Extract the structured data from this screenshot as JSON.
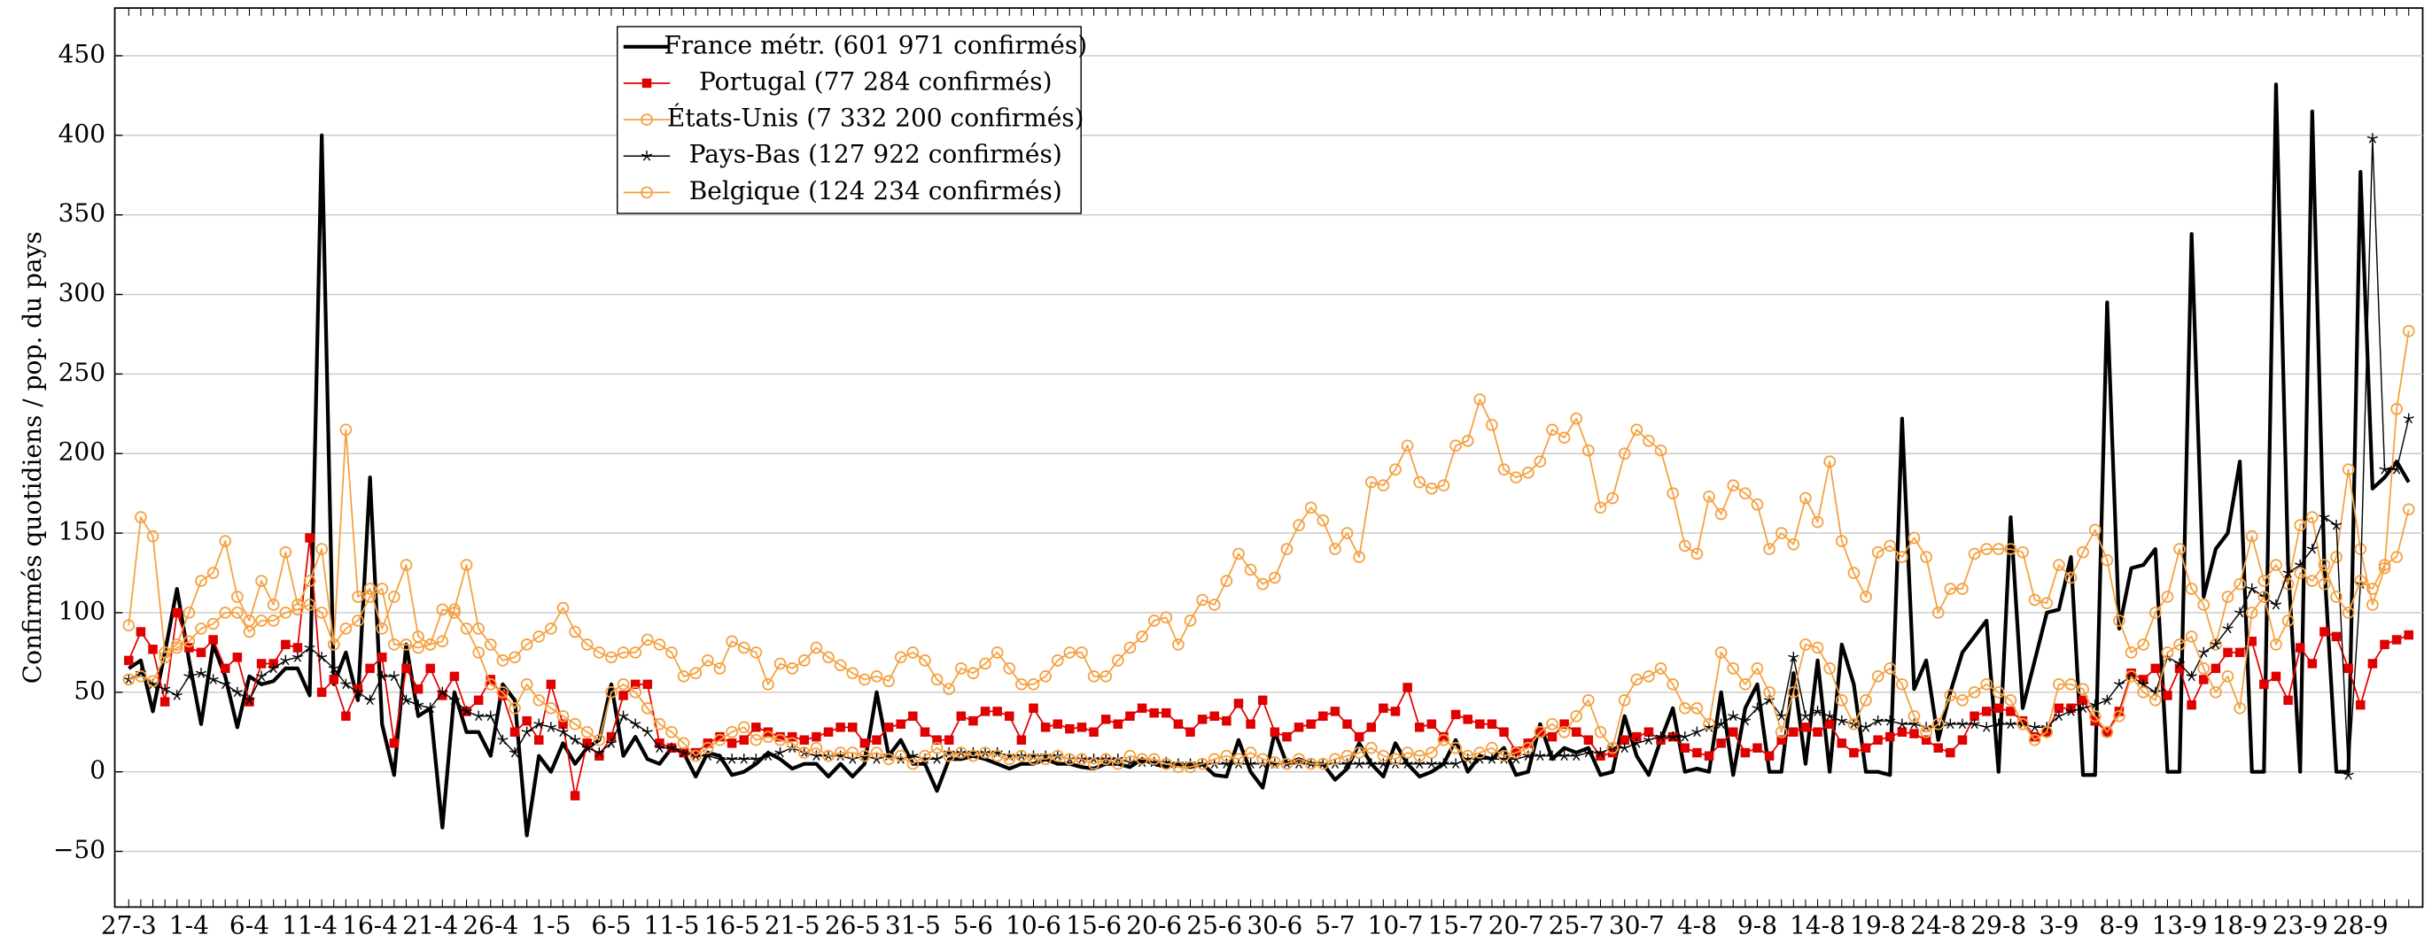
{
  "chart_data": {
    "type": "line",
    "y_label": "Confirmés quotidiens / pop. du pays",
    "categories": [
      "27-3",
      null,
      null,
      null,
      null,
      "1-4",
      null,
      null,
      null,
      null,
      "6-4",
      null,
      null,
      null,
      null,
      "11-4",
      null,
      null,
      null,
      null,
      "16-4",
      null,
      null,
      null,
      null,
      "21-4",
      null,
      null,
      null,
      null,
      "26-4",
      null,
      null,
      null,
      null,
      "1-5",
      null,
      null,
      null,
      null,
      "6-5",
      null,
      null,
      null,
      null,
      "11-5",
      null,
      null,
      null,
      null,
      "16-5",
      null,
      null,
      null,
      null,
      "21-5",
      null,
      null,
      null,
      null,
      "26-5",
      null,
      null,
      null,
      null,
      "31-5",
      null,
      null,
      null,
      null,
      "5-6",
      null,
      null,
      null,
      null,
      "10-6",
      null,
      null,
      null,
      null,
      "15-6",
      null,
      null,
      null,
      null,
      "20-6",
      null,
      null,
      null,
      null,
      "25-6",
      null,
      null,
      null,
      null,
      "30-6",
      null,
      null,
      null,
      null,
      "5-7",
      null,
      null,
      null,
      null,
      "10-7",
      null,
      null,
      null,
      null,
      "15-7",
      null,
      null,
      null,
      null,
      "20-7",
      null,
      null,
      null,
      null,
      "25-7",
      null,
      null,
      null,
      null,
      "30-7",
      null,
      null,
      null,
      null,
      "4-8",
      null,
      null,
      null,
      null,
      "9-8",
      null,
      null,
      null,
      null,
      "14-8",
      null,
      null,
      null,
      null,
      "19-8",
      null,
      null,
      null,
      null,
      "24-8",
      null,
      null,
      null,
      null,
      "29-8",
      null,
      null,
      null,
      null,
      "3-9",
      null,
      null,
      null,
      null,
      "8-9",
      null,
      null,
      null,
      null,
      "13-9",
      null,
      null,
      null,
      null,
      "18-9",
      null,
      null,
      null,
      null,
      "23-9",
      null,
      null,
      null,
      null,
      "28-9",
      null,
      null,
      null,
      null
    ],
    "ylim": [
      -85,
      480
    ],
    "yticks": [
      {
        "value": -50,
        "label": "−50"
      },
      0,
      50,
      100,
      150,
      200,
      250,
      300,
      350,
      400,
      450
    ],
    "grid": true,
    "legend": "upper-left",
    "series": [
      {
        "name": "France métr. (601 971 confirmés)",
        "color": "#000000",
        "width": 2.4,
        "marker": "none",
        "values": [
          65,
          70,
          38,
          75,
          115,
          70,
          30,
          80,
          60,
          28,
          60,
          55,
          57,
          65,
          65,
          48,
          400,
          55,
          75,
          45,
          185,
          30,
          -2,
          80,
          35,
          40,
          -35,
          50,
          25,
          25,
          10,
          55,
          45,
          -40,
          10,
          0,
          18,
          5,
          15,
          20,
          55,
          10,
          22,
          8,
          5,
          15,
          12,
          -3,
          12,
          10,
          -2,
          0,
          5,
          12,
          8,
          2,
          5,
          5,
          -3,
          5,
          -3,
          5,
          50,
          10,
          20,
          5,
          5,
          -12,
          8,
          8,
          10,
          8,
          5,
          2,
          5,
          5,
          8,
          5,
          5,
          3,
          2,
          5,
          5,
          3,
          8,
          5,
          3,
          5,
          3,
          5,
          -2,
          -3,
          20,
          0,
          -10,
          25,
          5,
          8,
          5,
          5,
          -5,
          2,
          18,
          5,
          -3,
          18,
          5,
          -3,
          0,
          5,
          20,
          0,
          10,
          8,
          15,
          -2,
          0,
          30,
          8,
          15,
          12,
          15,
          -2,
          0,
          35,
          10,
          -2,
          20,
          40,
          0,
          2,
          0,
          50,
          -2,
          40,
          55,
          0,
          0,
          62,
          5,
          70,
          0,
          80,
          55,
          0,
          0,
          -2,
          222,
          52,
          70,
          20,
          50,
          75,
          85,
          95,
          0,
          160,
          40,
          70,
          100,
          102,
          135,
          -2,
          -2,
          295,
          90,
          128,
          130,
          140,
          0,
          0,
          338,
          110,
          140,
          150,
          195,
          0,
          0,
          432,
          130,
          0,
          415,
          130,
          0,
          0,
          377,
          178,
          185,
          195,
          182
        ]
      },
      {
        "name": "Portugal (77 284 confirmés)",
        "color": "#e00000",
        "width": 1,
        "marker": "square",
        "values": [
          70,
          88,
          77,
          44,
          100,
          78,
          75,
          83,
          65,
          72,
          44,
          68,
          68,
          80,
          78,
          147,
          50,
          58,
          35,
          52,
          65,
          72,
          18,
          65,
          52,
          65,
          48,
          60,
          38,
          45,
          58,
          48,
          25,
          32,
          20,
          55,
          30,
          -15,
          18,
          10,
          22,
          48,
          55,
          55,
          18,
          15,
          12,
          12,
          18,
          22,
          18,
          20,
          28,
          25,
          22,
          22,
          20,
          22,
          25,
          28,
          28,
          18,
          20,
          28,
          30,
          35,
          25,
          20,
          20,
          35,
          32,
          38,
          38,
          35,
          20,
          40,
          28,
          30,
          27,
          28,
          25,
          33,
          30,
          35,
          40,
          37,
          37,
          30,
          25,
          33,
          35,
          32,
          43,
          30,
          45,
          25,
          22,
          28,
          30,
          35,
          38,
          30,
          22,
          28,
          40,
          38,
          53,
          28,
          30,
          22,
          36,
          33,
          30,
          30,
          25,
          13,
          18,
          25,
          22,
          30,
          25,
          20,
          10,
          12,
          20,
          22,
          25,
          20,
          22,
          15,
          12,
          10,
          18,
          25,
          12,
          15,
          10,
          20,
          25,
          28,
          25,
          30,
          18,
          12,
          15,
          20,
          22,
          25,
          24,
          20,
          15,
          12,
          20,
          35,
          38,
          40,
          38,
          32,
          22,
          25,
          40,
          40,
          45,
          32,
          25,
          38,
          62,
          58,
          65,
          48,
          65,
          42,
          58,
          65,
          75,
          75,
          82,
          55,
          60,
          45,
          78,
          68,
          88,
          85,
          65,
          42,
          68,
          80,
          83,
          86
        ]
      },
      {
        "name": "États-Unis (7 332 200 confirmés)",
        "color": "#f5a040",
        "width": 1,
        "marker": "circle",
        "values": [
          92,
          160,
          148,
          75,
          80,
          100,
          120,
          125,
          145,
          110,
          95,
          120,
          105,
          138,
          105,
          120,
          140,
          80,
          215,
          110,
          115,
          90,
          110,
          130,
          85,
          80,
          82,
          102,
          130,
          90,
          80,
          70,
          72,
          80,
          85,
          90,
          103,
          88,
          80,
          75,
          72,
          75,
          75,
          83,
          80,
          75,
          60,
          62,
          70,
          65,
          82,
          78,
          75,
          55,
          68,
          65,
          70,
          78,
          72,
          67,
          62,
          58,
          60,
          57,
          72,
          75,
          70,
          58,
          52,
          65,
          62,
          68,
          75,
          65,
          55,
          55,
          60,
          70,
          75,
          75,
          60,
          60,
          70,
          78,
          85,
          95,
          97,
          80,
          95,
          108,
          105,
          120,
          137,
          127,
          118,
          122,
          140,
          155,
          166,
          158,
          140,
          150,
          135,
          182,
          180,
          190,
          205,
          182,
          178,
          180,
          205,
          208,
          234,
          218,
          190,
          185,
          188,
          195,
          215,
          210,
          222,
          202,
          166,
          172,
          200,
          215,
          208,
          202,
          175,
          142,
          137,
          173,
          162,
          180,
          175,
          168,
          140,
          150,
          143,
          172,
          157,
          195,
          145,
          125,
          110,
          138,
          142,
          135,
          147,
          135,
          100,
          115,
          115,
          137,
          140,
          140,
          140,
          138,
          108,
          106,
          130,
          122,
          138,
          152,
          133,
          95,
          75,
          80,
          100,
          110,
          140,
          115,
          105,
          80,
          110,
          118,
          148,
          120,
          130,
          118,
          155,
          160,
          118,
          135,
          190,
          140,
          105,
          128,
          228,
          277
        ]
      },
      {
        "name": "Pays-Bas (127 922 confirmés)",
        "color": "#000000",
        "width": 0.8,
        "marker": "star",
        "values": [
          58,
          62,
          55,
          52,
          48,
          60,
          62,
          58,
          55,
          50,
          45,
          60,
          65,
          70,
          72,
          78,
          72,
          65,
          55,
          50,
          45,
          60,
          60,
          45,
          42,
          40,
          50,
          45,
          38,
          35,
          35,
          20,
          12,
          25,
          30,
          28,
          25,
          20,
          15,
          12,
          18,
          35,
          30,
          25,
          15,
          15,
          12,
          10,
          10,
          8,
          8,
          8,
          8,
          10,
          12,
          15,
          12,
          10,
          10,
          10,
          8,
          10,
          8,
          10,
          8,
          10,
          8,
          8,
          12,
          12,
          12,
          12,
          12,
          10,
          10,
          10,
          10,
          10,
          8,
          8,
          8,
          8,
          8,
          6,
          6,
          6,
          6,
          5,
          5,
          5,
          5,
          5,
          5,
          5,
          5,
          5,
          5,
          5,
          5,
          5,
          5,
          5,
          5,
          5,
          5,
          5,
          5,
          5,
          5,
          5,
          5,
          8,
          8,
          8,
          8,
          8,
          10,
          10,
          10,
          10,
          10,
          12,
          12,
          15,
          15,
          18,
          20,
          22,
          22,
          22,
          25,
          28,
          30,
          35,
          32,
          40,
          45,
          35,
          72,
          35,
          38,
          35,
          32,
          30,
          28,
          32,
          32,
          30,
          30,
          28,
          28,
          30,
          30,
          30,
          28,
          30,
          30,
          30,
          28,
          28,
          35,
          38,
          40,
          42,
          45,
          55,
          60,
          55,
          50,
          72,
          68,
          60,
          75,
          80,
          90,
          100,
          115,
          110,
          105,
          125,
          130,
          140,
          160,
          155,
          -2,
          118,
          398,
          190,
          190,
          222
        ]
      },
      {
        "name": "Belgique (124 234 confirmés)",
        "color": "#f5a040",
        "width": 1,
        "marker": "circle",
        "values": [
          58,
          60,
          57,
          72,
          78,
          82,
          90,
          93,
          100,
          100,
          88,
          95,
          95,
          100,
          102,
          105,
          100,
          80,
          90,
          95,
          110,
          115,
          80,
          80,
          78,
          80,
          102,
          100,
          90,
          75,
          55,
          50,
          40,
          55,
          45,
          40,
          35,
          30,
          25,
          20,
          50,
          55,
          50,
          40,
          30,
          25,
          18,
          10,
          15,
          20,
          25,
          28,
          20,
          22,
          20,
          18,
          12,
          15,
          10,
          12,
          12,
          10,
          12,
          8,
          10,
          5,
          10,
          15,
          10,
          12,
          10,
          12,
          10,
          8,
          10,
          8,
          8,
          10,
          8,
          8,
          5,
          8,
          5,
          10,
          8,
          8,
          5,
          3,
          3,
          5,
          8,
          10,
          8,
          12,
          8,
          6,
          5,
          8,
          5,
          5,
          8,
          10,
          12,
          15,
          10,
          8,
          12,
          10,
          12,
          20,
          15,
          10,
          12,
          15,
          10,
          12,
          15,
          25,
          30,
          25,
          35,
          45,
          25,
          15,
          45,
          58,
          60,
          65,
          55,
          40,
          40,
          30,
          75,
          65,
          55,
          65,
          50,
          25,
          50,
          80,
          78,
          65,
          45,
          30,
          45,
          60,
          65,
          55,
          35,
          25,
          30,
          48,
          45,
          50,
          55,
          50,
          45,
          30,
          20,
          25,
          55,
          55,
          52,
          35,
          25,
          35,
          60,
          50,
          45,
          75,
          80,
          85,
          65,
          50,
          60,
          40,
          100,
          110,
          80,
          95,
          125,
          120,
          130,
          110,
          100,
          120,
          115,
          130,
          135,
          165
        ]
      }
    ]
  }
}
